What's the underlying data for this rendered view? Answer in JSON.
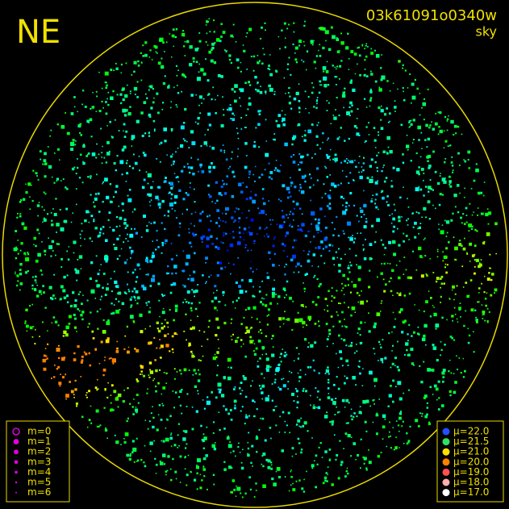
{
  "header": {
    "direction": "NE",
    "image_id": "03k61091o0340w",
    "filter": "sky"
  },
  "legend_magnitude": {
    "items": [
      {
        "label": "m=0"
      },
      {
        "label": "m=1"
      },
      {
        "label": "m=2"
      },
      {
        "label": "m=3"
      },
      {
        "label": "m=4"
      },
      {
        "label": "m=5"
      },
      {
        "label": "m=6"
      }
    ],
    "color": "#e000e0"
  },
  "legend_brightness": {
    "items": [
      {
        "label": "μ=22.0",
        "color": "#2050ff"
      },
      {
        "label": "μ=21.5",
        "color": "#30e060"
      },
      {
        "label": "μ=21.0",
        "color": "#ffe000"
      },
      {
        "label": "μ=20.0",
        "color": "#ff8000"
      },
      {
        "label": "μ=19.0",
        "color": "#ff5050"
      },
      {
        "label": "μ=18.0",
        "color": "#ffb0b0"
      },
      {
        "label": "μ=17.0",
        "color": "#ffffff"
      }
    ]
  }
}
